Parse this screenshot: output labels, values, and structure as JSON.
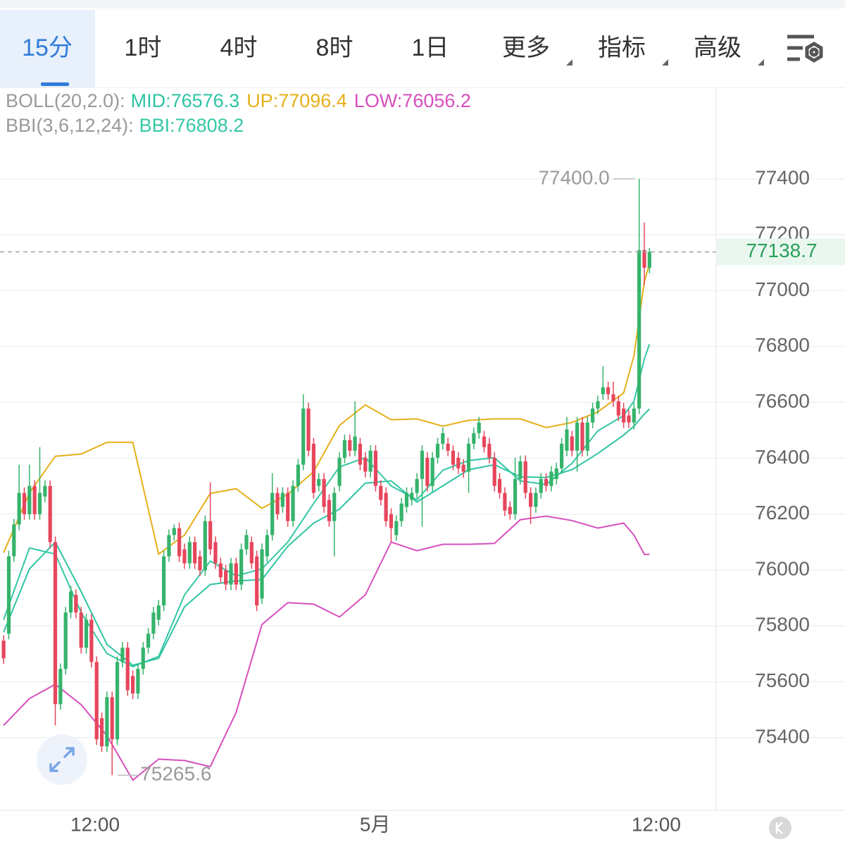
{
  "tabs": [
    "15分",
    "1时",
    "4时",
    "8时",
    "1日",
    "更多",
    "指标",
    "高级"
  ],
  "active_tab": 0,
  "chart_data": {
    "type": "candlestick",
    "xlim": [
      -0.7,
      137.9
    ],
    "xticks": [
      {
        "value": 17.7,
        "label": "12:00"
      },
      {
        "value": 71.9,
        "label": "5月"
      },
      {
        "value": 126.3,
        "label": "12:00"
      }
    ],
    "ylim": [
      75140,
      77725
    ],
    "yticks": [
      75400,
      75600,
      75800,
      76000,
      76200,
      76400,
      76600,
      76800,
      77000,
      77200,
      77400
    ],
    "grid": true,
    "up_color": "#35b36b",
    "down_color": "#e6465c",
    "ohlc": [
      [
        75747,
        75767,
        75664,
        75684
      ],
      [
        75772,
        76069,
        75752,
        76049
      ],
      [
        76049,
        76183,
        76029,
        76163
      ],
      [
        76163,
        76377,
        76142,
        76276
      ],
      [
        76276,
        76296,
        76180,
        76200
      ],
      [
        76200,
        76377,
        76180,
        76301
      ],
      [
        76301,
        76321,
        76180,
        76200
      ],
      [
        76200,
        76440,
        76180,
        76276
      ],
      [
        76263,
        76321,
        76243,
        76301
      ],
      [
        76301,
        76321,
        76079,
        76100
      ],
      [
        76100,
        76120,
        75444,
        75520
      ],
      [
        75520,
        75666,
        75500,
        75646
      ],
      [
        75646,
        75868,
        75626,
        75848
      ],
      [
        75848,
        75943,
        75827,
        75923
      ],
      [
        75911,
        75931,
        75827,
        75848
      ],
      [
        75848,
        75868,
        75701,
        75722
      ],
      [
        75722,
        75843,
        75701,
        75822
      ],
      [
        75822,
        75843,
        75651,
        75671
      ],
      [
        75671,
        75691,
        75374,
        75394
      ],
      [
        75470,
        75490,
        75349,
        75369
      ],
      [
        75369,
        75565,
        75349,
        75545
      ],
      [
        75545,
        75565,
        75265.6,
        75394
      ],
      [
        75394,
        75691,
        75374,
        75671
      ],
      [
        75671,
        75742,
        75651,
        75722
      ],
      [
        75722,
        75742,
        75550,
        75570
      ],
      [
        75621,
        75641,
        75538,
        75558
      ],
      [
        75558,
        75666,
        75538,
        75646
      ],
      [
        75646,
        75742,
        75626,
        75722
      ],
      [
        75722,
        75792,
        75701,
        75772
      ],
      [
        75772,
        75868,
        75752,
        75848
      ],
      [
        75822,
        75893,
        75802,
        75873
      ],
      [
        75873,
        76069,
        75853,
        76049
      ],
      [
        76049,
        76145,
        76029,
        76125
      ],
      [
        76125,
        76163,
        76105,
        76150
      ],
      [
        76150,
        76170,
        76029,
        76049
      ],
      [
        76074,
        76095,
        76004,
        76024
      ],
      [
        76024,
        76120,
        76004,
        76100
      ],
      [
        76100,
        76120,
        76004,
        76024
      ],
      [
        76049,
        76069,
        75979,
        75999
      ],
      [
        75999,
        76195,
        75979,
        76175
      ],
      [
        76175,
        76314,
        76054,
        76074
      ],
      [
        76100,
        76120,
        76004,
        76024
      ],
      [
        76024,
        76044,
        75953,
        75974
      ],
      [
        75999,
        76019,
        75928,
        75948
      ],
      [
        75948,
        76044,
        75928,
        76024
      ],
      [
        76024,
        76044,
        75928,
        75948
      ],
      [
        75948,
        76095,
        75928,
        76074
      ],
      [
        76074,
        76145,
        76054,
        76125
      ],
      [
        76100,
        76120,
        76004,
        76024
      ],
      [
        76049,
        76069,
        75853,
        75873
      ],
      [
        75898,
        76095,
        75878,
        76074
      ],
      [
        76049,
        76145,
        76029,
        76125
      ],
      [
        76125,
        76347,
        76105,
        76276
      ],
      [
        76276,
        76296,
        76180,
        76200
      ],
      [
        76226,
        76296,
        76205,
        76276
      ],
      [
        76276,
        76296,
        76155,
        76175
      ],
      [
        76175,
        76321,
        76155,
        76301
      ],
      [
        76301,
        76397,
        76281,
        76377
      ],
      [
        76377,
        76629,
        76357,
        76578
      ],
      [
        76578,
        76599,
        76407,
        76427
      ],
      [
        76452,
        76473,
        76256,
        76276
      ],
      [
        76301,
        76347,
        76281,
        76326
      ],
      [
        76326,
        76347,
        76205,
        76226
      ],
      [
        76251,
        76271,
        76155,
        76175
      ],
      [
        76175,
        76296,
        76049,
        76276
      ],
      [
        76301,
        76422,
        76281,
        76402
      ],
      [
        76402,
        76485,
        76382,
        76465
      ],
      [
        76465,
        76485,
        76407,
        76427
      ],
      [
        76427,
        76604,
        76407,
        76478
      ],
      [
        76452,
        76473,
        76357,
        76377
      ],
      [
        76402,
        76422,
        76331,
        76352
      ],
      [
        76352,
        76447,
        76331,
        76427
      ],
      [
        76427,
        76447,
        76281,
        76301
      ],
      [
        76301,
        76321,
        76231,
        76251
      ],
      [
        76276,
        76296,
        76155,
        76175
      ],
      [
        76200,
        76221,
        76100,
        76150
      ],
      [
        76125,
        76195,
        76105,
        76175
      ],
      [
        76175,
        76258,
        76155,
        76238
      ],
      [
        76226,
        76296,
        76205,
        76276
      ],
      [
        76251,
        76296,
        76231,
        76276
      ],
      [
        76276,
        76347,
        76256,
        76326
      ],
      [
        76326,
        76447,
        76155,
        76427
      ],
      [
        76402,
        76422,
        76281,
        76301
      ],
      [
        76301,
        76422,
        76281,
        76402
      ],
      [
        76402,
        76473,
        76382,
        76452
      ],
      [
        76452,
        76510,
        76432,
        76490
      ],
      [
        76452,
        76473,
        76407,
        76427
      ],
      [
        76427,
        76447,
        76357,
        76377
      ],
      [
        76402,
        76422,
        76344,
        76364
      ],
      [
        76377,
        76397,
        76331,
        76352
      ],
      [
        76352,
        76473,
        76276,
        76452
      ],
      [
        76452,
        76510,
        76432,
        76490
      ],
      [
        76490,
        76548,
        76470,
        76528
      ],
      [
        76478,
        76498,
        76420,
        76440
      ],
      [
        76452,
        76473,
        76382,
        76402
      ],
      [
        76402,
        76422,
        76281,
        76301
      ],
      [
        76326,
        76347,
        76256,
        76276
      ],
      [
        76276,
        76296,
        76193,
        76213
      ],
      [
        76226,
        76246,
        76180,
        76200
      ],
      [
        76200,
        76402,
        76180,
        76326
      ],
      [
        76326,
        76410,
        76306,
        76389
      ],
      [
        76389,
        76410,
        76256,
        76276
      ],
      [
        76276,
        76296,
        76165,
        76226
      ],
      [
        76226,
        76296,
        76205,
        76276
      ],
      [
        76276,
        76347,
        76256,
        76326
      ],
      [
        76326,
        76347,
        76281,
        76301
      ],
      [
        76301,
        76372,
        76281,
        76352
      ],
      [
        76326,
        76384,
        76306,
        76364
      ],
      [
        76364,
        76473,
        76344,
        76452
      ],
      [
        76427,
        76548,
        76407,
        76503
      ],
      [
        76478,
        76498,
        76407,
        76427
      ],
      [
        76427,
        76548,
        76352,
        76528
      ],
      [
        76528,
        76548,
        76407,
        76427
      ],
      [
        76427,
        76548,
        76407,
        76528
      ],
      [
        76528,
        76599,
        76508,
        76578
      ],
      [
        76578,
        76624,
        76558,
        76604
      ],
      [
        76629,
        76730,
        76609,
        76654
      ],
      [
        76654,
        76674,
        76609,
        76629
      ],
      [
        76629,
        76674,
        76584,
        76604
      ],
      [
        76604,
        76624,
        76533,
        76553
      ],
      [
        76578,
        76599,
        76508,
        76528
      ],
      [
        76553,
        76574,
        76508,
        76528
      ],
      [
        76528,
        76599,
        76503,
        76578
      ],
      [
        76578,
        77400,
        76558,
        77145
      ],
      [
        77145,
        77244,
        77019,
        77082
      ],
      [
        77082,
        77153,
        77062,
        77138.7
      ]
    ],
    "annotations": [
      {
        "value": 77400,
        "label": "77400.0"
      },
      {
        "value": 75265.6,
        "label": "75265.6"
      }
    ],
    "last_price": 77138.7,
    "last_price_color": "#2aa05a",
    "indicator_legend": [
      {
        "label": "BOLL(20,2.0):",
        "items": [
          {
            "text": "MID:76576.3",
            "color": "#2ec4a3"
          },
          {
            "text": "UP:77096.4",
            "color": "#e5b01a"
          },
          {
            "text": "LOW:76056.2",
            "color": "#d64fbd"
          }
        ]
      },
      {
        "label": "BBI(3,6,12,24):",
        "items": [
          {
            "text": "BBI:76808.2",
            "color": "#35c7a5"
          }
        ]
      }
    ],
    "lines": {
      "x": [
        0,
        5,
        10,
        15,
        20,
        25,
        30,
        35,
        40,
        45,
        50,
        55,
        60,
        65,
        70,
        75,
        80,
        85,
        90,
        95,
        100,
        105,
        110,
        115,
        120,
        122,
        124,
        125
      ],
      "series": [
        {
          "color": "#2ec4a3",
          "values": [
            75777,
            76004,
            76100,
            75923,
            75734,
            75659,
            75684,
            75868,
            75948,
            75961,
            75966,
            76085,
            76168,
            76218,
            76311,
            76319,
            76243,
            76301,
            76359,
            76377,
            76334,
            76331,
            76359,
            76417,
            76483,
            76515,
            76558,
            76576.3
          ]
        },
        {
          "color": "#e5b01a",
          "values": [
            76062,
            76276,
            76407,
            76415,
            76457,
            76457,
            76057,
            76125,
            76274,
            76291,
            76221,
            76271,
            76352,
            76518,
            76591,
            76538,
            76541,
            76515,
            76536,
            76541,
            76541,
            76510,
            76528,
            76566,
            76634,
            76767,
            77032,
            77096.4
          ]
        },
        {
          "color": "#d64fbd",
          "values": [
            75444,
            75540,
            75591,
            75518,
            75407,
            75248,
            75323,
            75318,
            75296,
            75490,
            75805,
            75883,
            75878,
            75832,
            75911,
            76100,
            76069,
            76092,
            76092,
            76095,
            76180,
            76193,
            76177,
            76150,
            76168,
            76125,
            76056,
            76056.2
          ]
        },
        {
          "color": "#35c7a5",
          "values": [
            75822,
            76079,
            76057,
            75848,
            75701,
            75654,
            75691,
            75911,
            76032,
            75979,
            76004,
            76100,
            76238,
            76369,
            76402,
            76301,
            76251,
            76357,
            76392,
            76402,
            76319,
            76306,
            76382,
            76498,
            76553,
            76604,
            76755,
            76808.2
          ]
        }
      ]
    }
  }
}
